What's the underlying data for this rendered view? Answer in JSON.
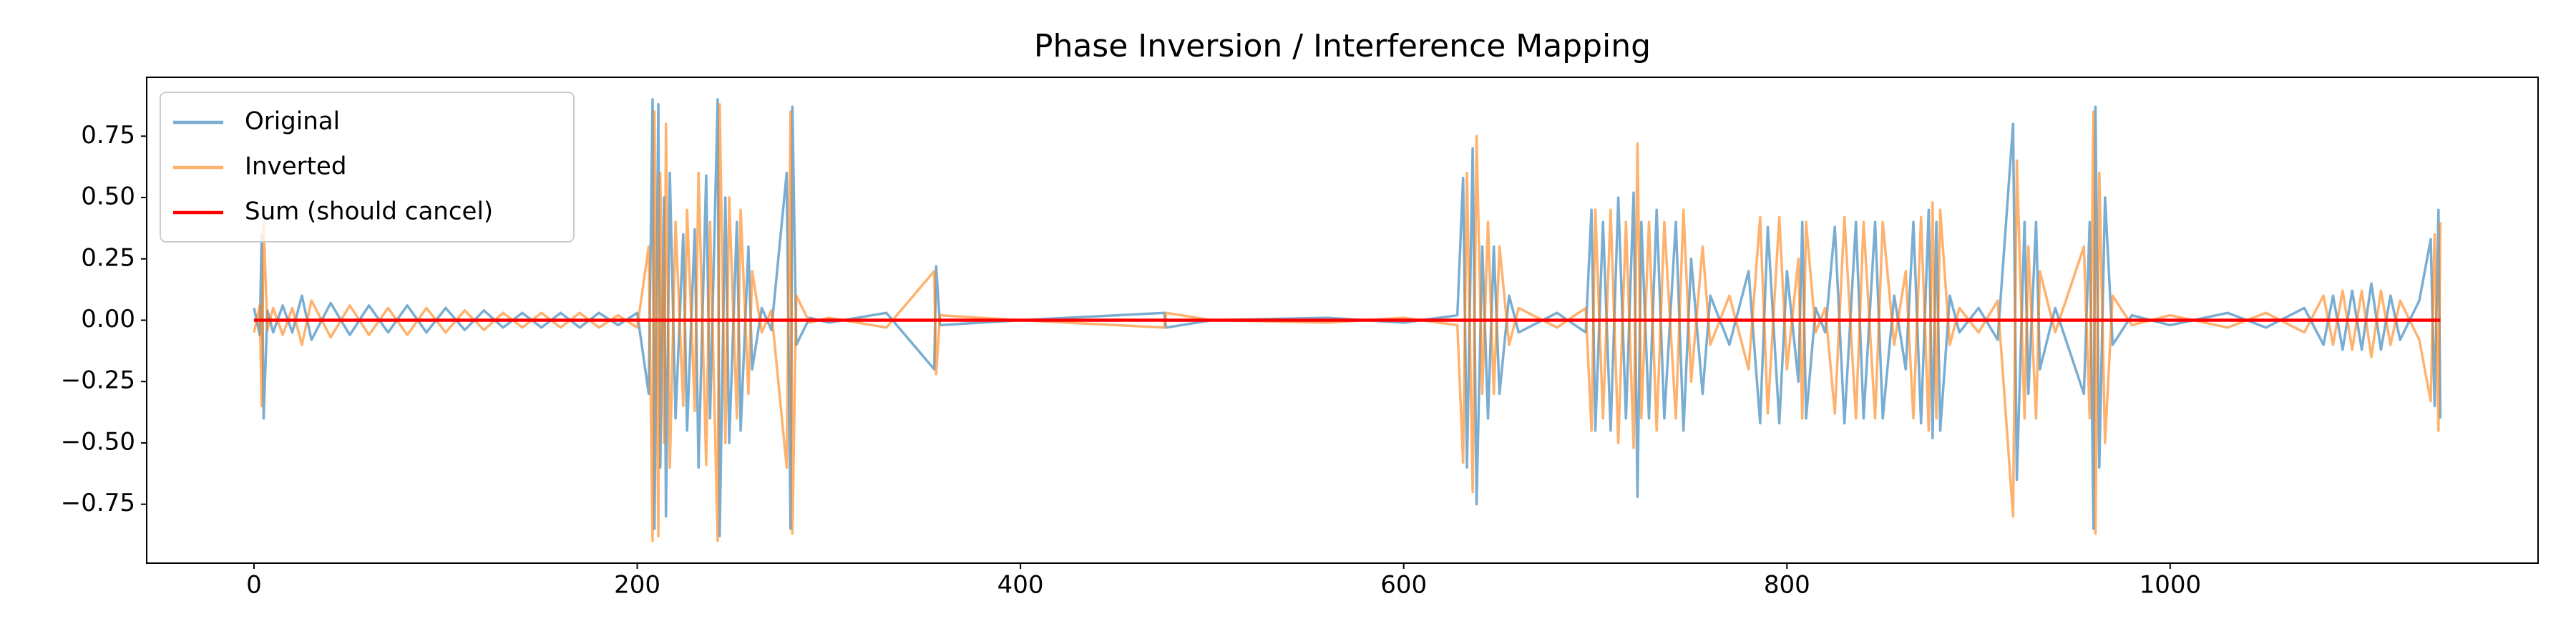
{
  "chart_data": {
    "type": "line",
    "title": "Phase Inversion / Interference Mapping",
    "x": [
      0,
      3,
      4,
      5,
      7,
      10,
      15,
      20,
      25,
      30,
      40,
      50,
      60,
      70,
      80,
      90,
      100,
      110,
      120,
      130,
      140,
      150,
      160,
      170,
      180,
      190,
      200,
      206,
      208,
      209,
      211,
      212,
      214,
      215,
      217,
      220,
      224,
      226,
      230,
      232,
      236,
      238,
      242,
      243,
      246,
      248,
      252,
      254,
      258,
      260,
      265,
      270,
      278,
      280,
      281,
      283,
      290,
      300,
      330,
      355,
      356,
      358,
      400,
      475,
      476,
      500,
      560,
      600,
      628,
      631,
      633,
      636,
      638,
      641,
      644,
      647,
      650,
      655,
      660,
      680,
      695,
      698,
      700,
      704,
      708,
      712,
      716,
      720,
      722,
      724,
      728,
      732,
      736,
      742,
      746,
      750,
      756,
      760,
      770,
      780,
      786,
      790,
      796,
      800,
      806,
      808,
      810,
      815,
      820,
      825,
      830,
      836,
      840,
      846,
      850,
      856,
      862,
      866,
      870,
      874,
      876,
      878,
      880,
      885,
      890,
      900,
      910,
      918,
      920,
      924,
      926,
      930,
      932,
      940,
      955,
      958,
      960,
      961,
      963,
      966,
      970,
      980,
      1000,
      1030,
      1050,
      1070,
      1080,
      1085,
      1090,
      1095,
      1100,
      1105,
      1110,
      1115,
      1120,
      1130,
      1136,
      1138,
      1140,
      1141
    ],
    "series": [
      {
        "name": "Original",
        "color": "#1f77b4",
        "values": [
          0.05,
          -0.06,
          0.35,
          -0.4,
          0.04,
          -0.05,
          0.06,
          -0.05,
          0.1,
          -0.08,
          0.07,
          -0.06,
          0.06,
          -0.05,
          0.06,
          -0.05,
          0.05,
          -0.04,
          0.04,
          -0.03,
          0.03,
          -0.03,
          0.03,
          -0.03,
          0.03,
          -0.02,
          0.03,
          -0.3,
          0.9,
          -0.85,
          0.88,
          -0.6,
          0.5,
          -0.8,
          0.6,
          -0.4,
          0.35,
          -0.45,
          0.37,
          -0.6,
          0.59,
          -0.4,
          0.9,
          -0.88,
          0.5,
          -0.5,
          0.4,
          -0.45,
          0.3,
          -0.2,
          0.05,
          -0.04,
          0.6,
          -0.85,
          0.87,
          -0.1,
          0.01,
          -0.01,
          0.03,
          -0.2,
          0.22,
          -0.02,
          0,
          0.03,
          -0.03,
          0,
          0.01,
          -0.01,
          0.02,
          0.58,
          -0.6,
          0.7,
          -0.75,
          0.3,
          -0.4,
          0.3,
          -0.3,
          0.1,
          -0.05,
          0.03,
          -0.05,
          0.45,
          -0.45,
          0.4,
          -0.45,
          0.5,
          -0.4,
          0.52,
          -0.72,
          0.4,
          -0.4,
          0.45,
          -0.4,
          0.4,
          -0.45,
          0.25,
          -0.3,
          0.1,
          -0.1,
          0.2,
          -0.42,
          0.38,
          -0.42,
          0.2,
          -0.25,
          0.4,
          -0.4,
          0.05,
          -0.05,
          0.38,
          -0.42,
          0.4,
          -0.4,
          0.4,
          -0.4,
          0.1,
          -0.2,
          0.4,
          -0.42,
          0.45,
          -0.48,
          0.4,
          -0.45,
          0.1,
          -0.05,
          0.05,
          -0.08,
          0.8,
          -0.65,
          0.4,
          -0.3,
          0.4,
          -0.2,
          0.05,
          -0.3,
          0.4,
          -0.85,
          0.87,
          -0.6,
          0.5,
          -0.1,
          0.02,
          -0.02,
          0.03,
          -0.03,
          0.05,
          -0.1,
          0.1,
          -0.12,
          0.12,
          -0.12,
          0.15,
          -0.12,
          0.1,
          -0.08,
          0.08,
          0.33,
          -0.35,
          0.45,
          -0.4
        ]
      },
      {
        "name": "Inverted",
        "color": "#ff7f0e",
        "values": [
          -0.05,
          0.06,
          -0.35,
          0.4,
          -0.04,
          0.05,
          -0.06,
          0.05,
          -0.1,
          0.08,
          -0.07,
          0.06,
          -0.06,
          0.05,
          -0.06,
          0.05,
          -0.05,
          0.04,
          -0.04,
          0.03,
          -0.03,
          0.03,
          -0.03,
          0.03,
          -0.03,
          0.02,
          -0.03,
          0.3,
          -0.9,
          0.85,
          -0.88,
          0.6,
          -0.5,
          0.8,
          -0.6,
          0.4,
          -0.35,
          0.45,
          -0.37,
          0.6,
          -0.59,
          0.4,
          -0.9,
          0.88,
          -0.5,
          0.5,
          -0.4,
          0.45,
          -0.3,
          0.2,
          -0.05,
          0.04,
          -0.6,
          0.85,
          -0.87,
          0.1,
          -0.01,
          0.01,
          -0.03,
          0.2,
          -0.22,
          0.02,
          0,
          -0.03,
          0.03,
          0,
          -0.01,
          0.01,
          -0.02,
          -0.58,
          0.6,
          -0.7,
          0.75,
          -0.3,
          0.4,
          -0.3,
          0.3,
          -0.1,
          0.05,
          -0.03,
          0.05,
          -0.45,
          0.45,
          -0.4,
          0.45,
          -0.5,
          0.4,
          -0.52,
          0.72,
          -0.4,
          0.4,
          -0.45,
          0.4,
          -0.4,
          0.45,
          -0.25,
          0.3,
          -0.1,
          0.1,
          -0.2,
          0.42,
          -0.38,
          0.42,
          -0.2,
          0.25,
          -0.4,
          0.4,
          -0.05,
          0.05,
          -0.38,
          0.42,
          -0.4,
          0.4,
          -0.4,
          0.4,
          -0.1,
          0.2,
          -0.4,
          0.42,
          -0.45,
          0.48,
          -0.4,
          0.45,
          -0.1,
          0.05,
          -0.05,
          0.08,
          -0.8,
          0.65,
          -0.4,
          0.3,
          -0.4,
          0.2,
          -0.05,
          0.3,
          -0.4,
          0.85,
          -0.87,
          0.6,
          -0.5,
          0.1,
          -0.02,
          0.02,
          -0.03,
          0.03,
          -0.05,
          0.1,
          -0.1,
          0.12,
          -0.12,
          0.12,
          -0.15,
          0.12,
          -0.1,
          0.08,
          -0.08,
          -0.33,
          0.35,
          -0.45,
          0.4
        ]
      },
      {
        "name": "Sum (should cancel)",
        "color": "#ff0000",
        "x": [
          0,
          1141
        ],
        "values": [
          0,
          0
        ]
      }
    ],
    "xlim": [
      -56,
      1192
    ],
    "ylim": [
      -0.99,
      0.99
    ],
    "xticks": [
      0,
      200,
      400,
      600,
      800,
      1000
    ],
    "yticks": [
      {
        "value": -0.75,
        "label": "−0.75"
      },
      {
        "value": -0.5,
        "label": "−0.50"
      },
      {
        "value": -0.25,
        "label": "−0.25"
      },
      {
        "value": 0,
        "label": "0.00"
      },
      {
        "value": 0.25,
        "label": "0.25"
      },
      {
        "value": 0.5,
        "label": "0.50"
      },
      {
        "value": 0.75,
        "label": "0.75"
      }
    ],
    "legend": "upper left"
  }
}
